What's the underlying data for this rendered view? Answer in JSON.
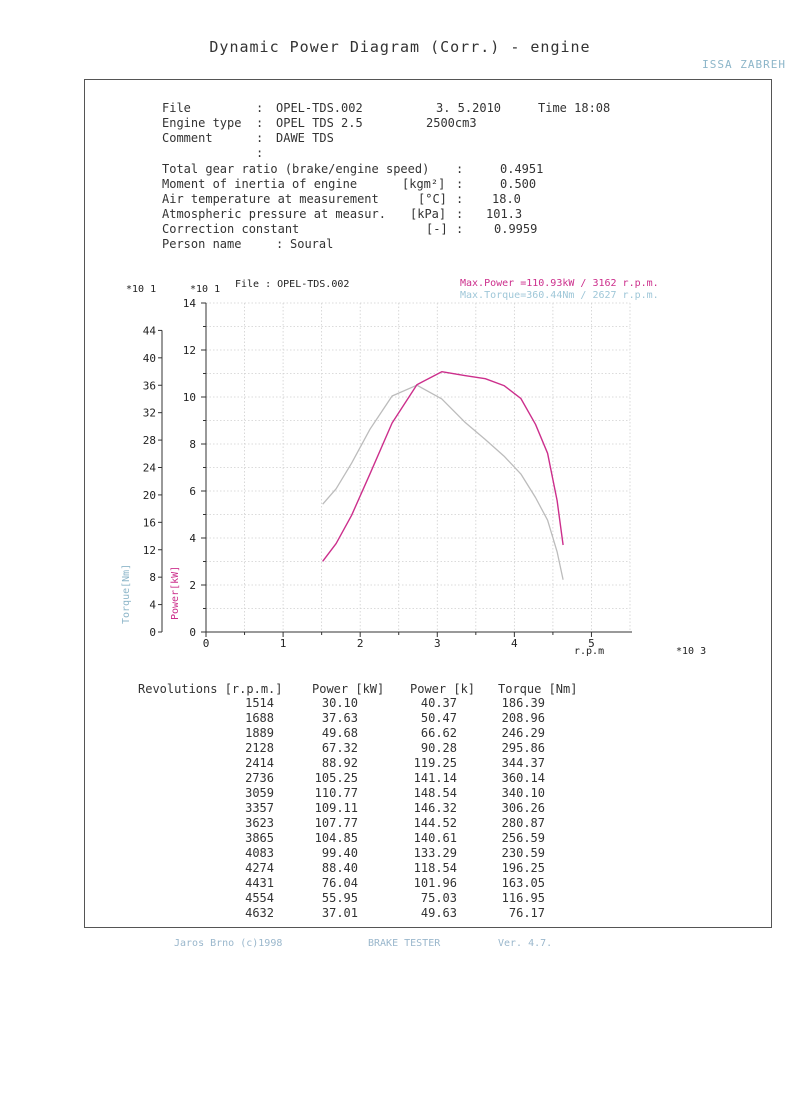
{
  "header": {
    "title": "Dynamic Power Diagram  (Corr.)  - engine",
    "right_label": "ISSA ZABREH"
  },
  "info": {
    "file_label": "File",
    "file_value": "OPEL-TDS.002",
    "date": "3. 5.2010",
    "time": "Time 18:08",
    "engine_type_label": "Engine type",
    "engine_type_value": "OPEL TDS 2.5",
    "displacement": "2500cm3",
    "comment_label": "Comment",
    "comment_value": "DAWE TDS",
    "params": [
      {
        "label": "Total gear ratio (brake/engine speed)",
        "unit": "",
        "value": "0.4951"
      },
      {
        "label": "Moment of inertia of engine",
        "unit": "[kgm²]",
        "value": "0.500"
      },
      {
        "label": "Air temperature at measurement",
        "unit": "[°C]",
        "value": "18.0"
      },
      {
        "label": "Atmospheric pressure at measur.",
        "unit": "[kPa]",
        "value": "101.3"
      },
      {
        "label": "Correction constant",
        "unit": "[-]",
        "value": "0.9959"
      }
    ],
    "person_label": "Person name",
    "person_value": "Soural"
  },
  "chart_data": {
    "type": "line",
    "file_label": "File : OPEL-TDS.002",
    "max_power_text": "Max.Power =110.93kW /  3162 r.p.m.",
    "max_torque_text": "Max.Torque=360.44Nm /  2627 r.p.m.",
    "xlabel": "r.p.m",
    "x_multiplier": "*10 3",
    "power_axis_label": "Power[kW]",
    "power_multiplier": "*10 1",
    "torque_axis_label": "Torque[Nm]",
    "torque_multiplier": "*10 1",
    "xlim": [
      0,
      5500
    ],
    "x_ticks": [
      "0",
      "1",
      "2",
      "3",
      "4",
      "5"
    ],
    "power_ylim": [
      0,
      140
    ],
    "power_ticks": [
      "0",
      "2",
      "4",
      "6",
      "8",
      "10",
      "12",
      "14"
    ],
    "torque_ylim": [
      0,
      480
    ],
    "torque_ticks": [
      "0",
      "4",
      "8",
      "12",
      "16",
      "20",
      "24",
      "28",
      "32",
      "36",
      "40",
      "44"
    ],
    "grid": true,
    "series": [
      {
        "name": "Power",
        "color": "#cc2f8c",
        "x": [
          1514,
          1688,
          1889,
          2128,
          2414,
          2736,
          3059,
          3357,
          3623,
          3865,
          4083,
          4274,
          4431,
          4554,
          4632
        ],
        "values": [
          30.1,
          37.63,
          49.68,
          67.32,
          88.92,
          105.25,
          110.77,
          109.11,
          107.77,
          104.85,
          99.4,
          88.4,
          76.04,
          55.95,
          37.01
        ]
      },
      {
        "name": "Torque",
        "color": "#bcbcbc",
        "x": [
          1514,
          1688,
          1889,
          2128,
          2414,
          2736,
          3059,
          3357,
          3623,
          3865,
          4083,
          4274,
          4431,
          4554,
          4632
        ],
        "values": [
          186.39,
          208.96,
          246.29,
          295.86,
          344.37,
          360.14,
          340.1,
          306.26,
          280.87,
          256.59,
          230.59,
          196.25,
          163.05,
          116.95,
          76.17
        ]
      }
    ]
  },
  "table": {
    "headers": [
      "Revolutions [r.p.m.]",
      "Power [kW]",
      "Power [k]",
      "Torque [Nm]"
    ],
    "rows": [
      [
        "1514",
        "30.10",
        "40.37",
        "186.39"
      ],
      [
        "1688",
        "37.63",
        "50.47",
        "208.96"
      ],
      [
        "1889",
        "49.68",
        "66.62",
        "246.29"
      ],
      [
        "2128",
        "67.32",
        "90.28",
        "295.86"
      ],
      [
        "2414",
        "88.92",
        "119.25",
        "344.37"
      ],
      [
        "2736",
        "105.25",
        "141.14",
        "360.14"
      ],
      [
        "3059",
        "110.77",
        "148.54",
        "340.10"
      ],
      [
        "3357",
        "109.11",
        "146.32",
        "306.26"
      ],
      [
        "3623",
        "107.77",
        "144.52",
        "280.87"
      ],
      [
        "3865",
        "104.85",
        "140.61",
        "256.59"
      ],
      [
        "4083",
        "99.40",
        "133.29",
        "230.59"
      ],
      [
        "4274",
        "88.40",
        "118.54",
        "196.25"
      ],
      [
        "4431",
        "76.04",
        "101.96",
        "163.05"
      ],
      [
        "4554",
        "55.95",
        "75.03",
        "116.95"
      ],
      [
        "4632",
        "37.01",
        "49.63",
        "76.17"
      ]
    ]
  },
  "footer": {
    "left": "Jaros Brno (c)1998",
    "center": "BRAKE TESTER",
    "right": "Ver. 4.7."
  },
  "colors": {
    "power": "#cc2f8c",
    "torque": "#bcbcbc",
    "axis_label_blue": "#8db6c9"
  }
}
